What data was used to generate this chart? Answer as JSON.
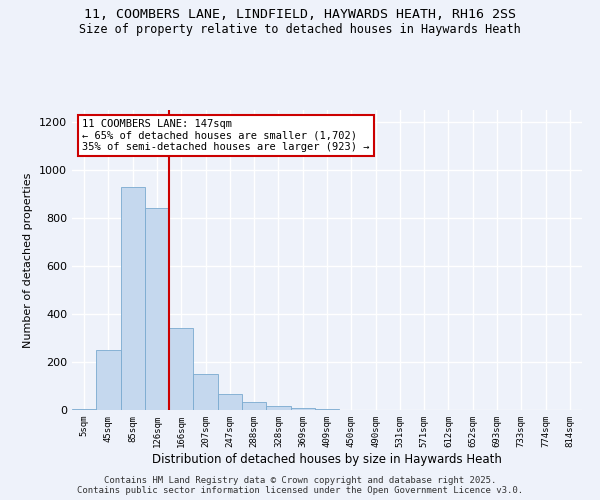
{
  "title_line1": "11, COOMBERS LANE, LINDFIELD, HAYWARDS HEATH, RH16 2SS",
  "title_line2": "Size of property relative to detached houses in Haywards Heath",
  "xlabel": "Distribution of detached houses by size in Haywards Heath",
  "ylabel": "Number of detached properties",
  "bar_color": "#c5d8ee",
  "bar_edge_color": "#7aaad0",
  "bin_labels": [
    "5sqm",
    "45sqm",
    "85sqm",
    "126sqm",
    "166sqm",
    "207sqm",
    "247sqm",
    "288sqm",
    "328sqm",
    "369sqm",
    "409sqm",
    "450sqm",
    "490sqm",
    "531sqm",
    "571sqm",
    "612sqm",
    "652sqm",
    "693sqm",
    "733sqm",
    "774sqm",
    "814sqm"
  ],
  "bar_values": [
    5,
    248,
    930,
    840,
    340,
    148,
    65,
    35,
    15,
    8,
    5,
    0,
    0,
    2,
    0,
    0,
    0,
    0,
    2,
    0,
    0
  ],
  "ylim": [
    0,
    1250
  ],
  "yticks": [
    0,
    200,
    400,
    600,
    800,
    1000,
    1200
  ],
  "vline_x_index": 3.5,
  "vline_color": "#cc0000",
  "annotation_text": "11 COOMBERS LANE: 147sqm\n← 65% of detached houses are smaller (1,702)\n35% of semi-detached houses are larger (923) →",
  "annotation_box_color": "#ffffff",
  "annotation_box_edge": "#cc0000",
  "footer_text": "Contains HM Land Registry data © Crown copyright and database right 2025.\nContains public sector information licensed under the Open Government Licence v3.0.",
  "background_color": "#eef2fa",
  "grid_color": "#ffffff",
  "title_fontsize": 9.5,
  "subtitle_fontsize": 8.5,
  "xlabel_fontsize": 8.5,
  "ylabel_fontsize": 8,
  "tick_fontsize": 8,
  "annotation_fontsize": 7.5,
  "footer_fontsize": 6.5
}
